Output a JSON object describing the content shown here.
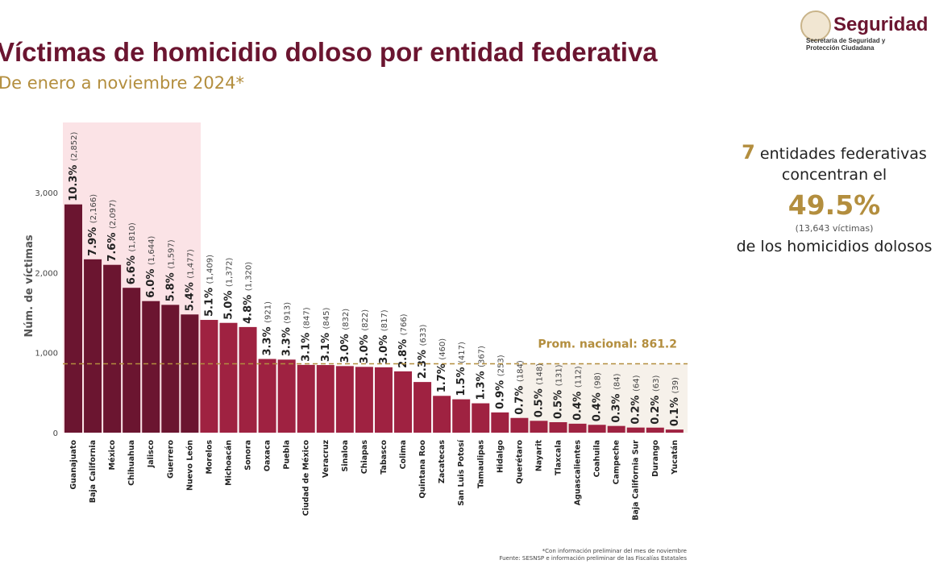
{
  "header": {
    "title": "Víctimas de homicidio doloso por entidad federativa",
    "subtitle": "De enero a noviembre 2024*"
  },
  "logo": {
    "name": "Seguridad",
    "subtitle": "Secretaría de Seguridad y Protección Ciudadana"
  },
  "side_panel": {
    "count": "7",
    "line1": " entidades federativas",
    "line2": "concentran el",
    "percent": "49.5%",
    "victims": "(13,643 víctimas)",
    "line3": "de los homicidios dolosos"
  },
  "footnote": {
    "line1": "*Con información preliminar del mes de noviembre",
    "line2": "Fuente: SESNSP e información preliminar de las Fiscalías Estatales"
  },
  "colors": {
    "top7": "#6b1530",
    "rest": "#9f2241",
    "highlight_bg": "#fbe3e6",
    "below_avg_bg": "#f6f1ea",
    "average_line": "#b38e3e"
  },
  "chart_data": {
    "type": "bar",
    "ylabel": "Núm. de víctimas",
    "ylim": [
      0,
      3000
    ],
    "yticks": [
      "0",
      "1,000",
      "2,000",
      "3,000"
    ],
    "grid": false,
    "average": {
      "label": "Prom. nacional: 861.2",
      "value": 861.2
    },
    "highlight_count": 7,
    "categories": [
      "Guanajuato",
      "Baja California",
      "México",
      "Chihuahua",
      "Jalisco",
      "Guerrero",
      "Nuevo León",
      "Morelos",
      "Michoacán",
      "Sonora",
      "Oaxaca",
      "Puebla",
      "Ciudad de México",
      "Veracruz",
      "Sinaloa",
      "Chiapas",
      "Tabasco",
      "Colima",
      "Quintana Roo",
      "Zacatecas",
      "San Luis Potosí",
      "Tamaulipas",
      "Hidalgo",
      "Querétaro",
      "Nayarit",
      "Tlaxcala",
      "Aguascalientes",
      "Coahuila",
      "Campeche",
      "Baja California Sur",
      "Durango",
      "Yucatán"
    ],
    "values": [
      2852,
      2166,
      2097,
      1810,
      1644,
      1597,
      1477,
      1409,
      1372,
      1320,
      921,
      913,
      847,
      845,
      832,
      822,
      817,
      766,
      633,
      460,
      417,
      367,
      253,
      184,
      148,
      131,
      112,
      98,
      84,
      64,
      63,
      39
    ],
    "value_labels": [
      "(2,852)",
      "(2,166)",
      "(2,097)",
      "(1,810)",
      "(1,644)",
      "(1,597)",
      "(1,477)",
      "(1,409)",
      "(1,372)",
      "(1,320)",
      "(921)",
      "(913)",
      "(847)",
      "(845)",
      "(832)",
      "(822)",
      "(817)",
      "(766)",
      "(633)",
      "(460)",
      "(417)",
      "(367)",
      "(253)",
      "(184)",
      "(148)",
      "(131)",
      "(112)",
      "(98)",
      "(84)",
      "(64)",
      "(63)",
      "(39)"
    ],
    "percent_labels": [
      "10.3%",
      "7.9%",
      "7.6%",
      "6.6%",
      "6.0%",
      "5.8%",
      "5.4%",
      "5.1%",
      "5.0%",
      "4.8%",
      "3.3%",
      "3.3%",
      "3.1%",
      "3.1%",
      "3.0%",
      "3.0%",
      "3.0%",
      "2.8%",
      "2.3%",
      "1.7%",
      "1.5%",
      "1.3%",
      "0.9%",
      "0.7%",
      "0.5%",
      "0.5%",
      "0.4%",
      "0.4%",
      "0.3%",
      "0.2%",
      "0.2%",
      "0.1%"
    ]
  }
}
